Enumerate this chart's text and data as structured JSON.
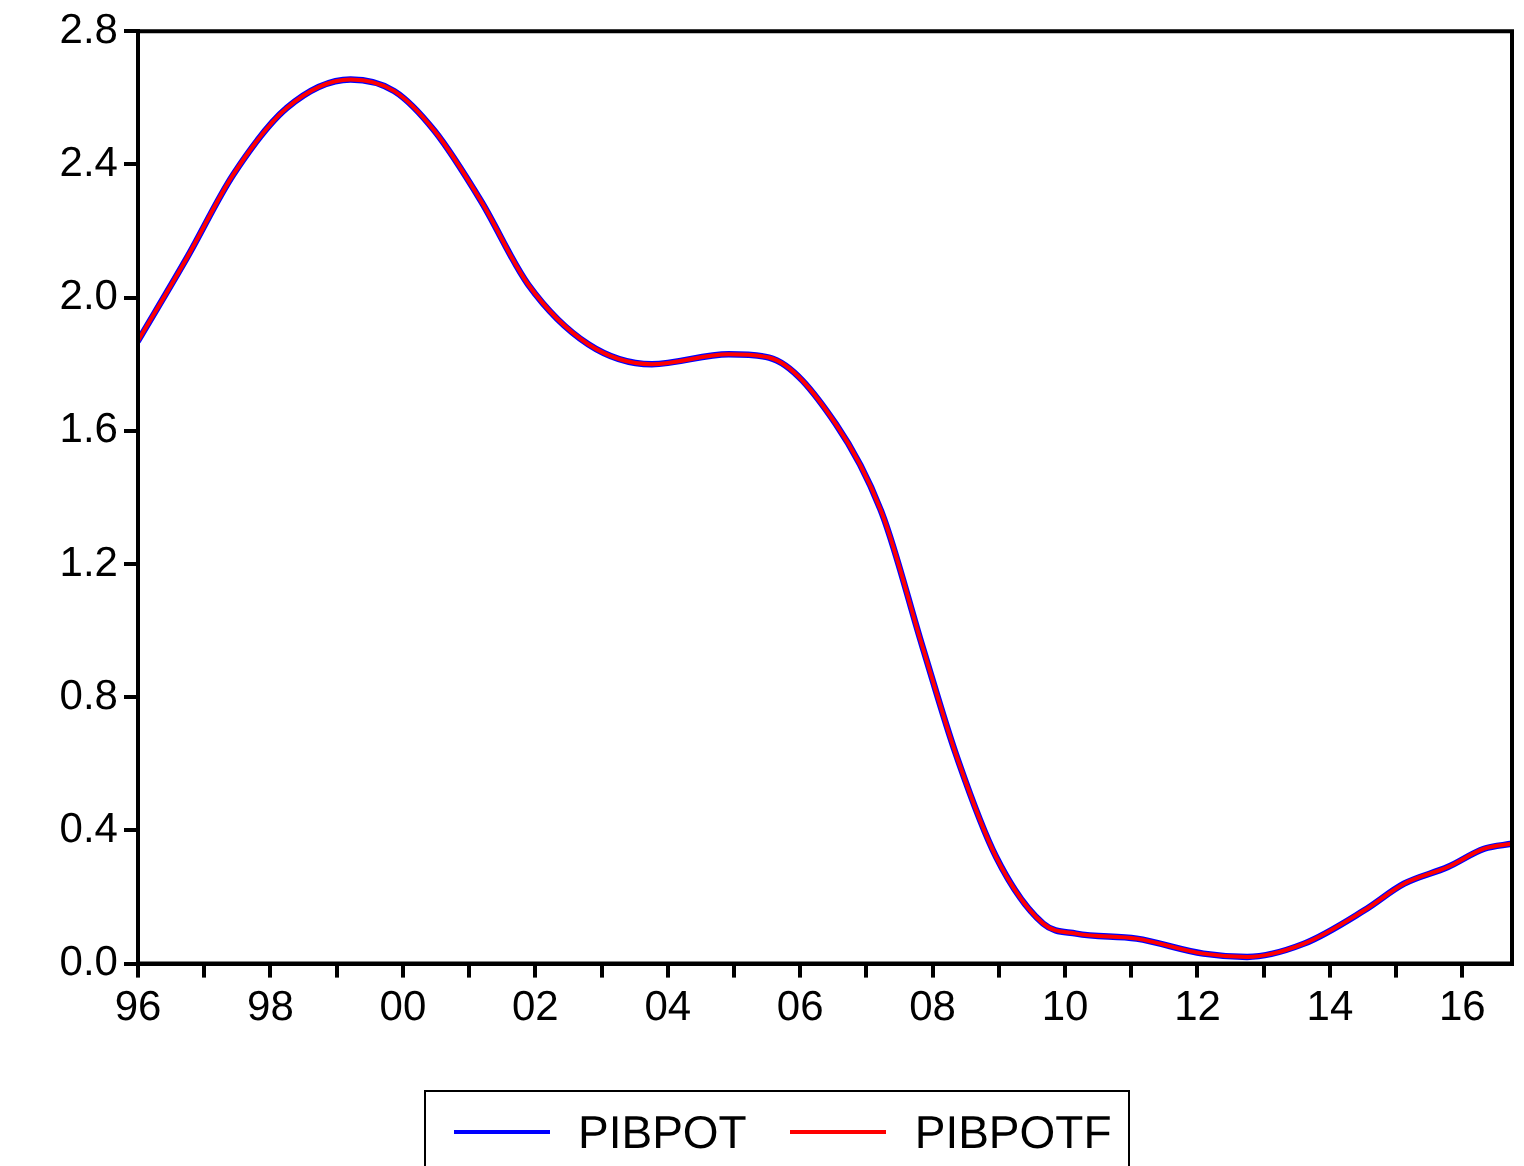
{
  "chart_data": {
    "type": "line",
    "x": [
      1996,
      1996.74,
      1997.44,
      1998.25,
      1999.21,
      1999.87,
      2000.48,
      2001.18,
      2001.89,
      2002.8,
      2003.76,
      2004.92,
      2005.53,
      2006.54,
      2007.24,
      2007.85,
      2008.35,
      2008.96,
      2009.67,
      2010.17,
      2011.08,
      2012.09,
      2012.75,
      2013.61,
      2014.52,
      2015.12,
      2015.78,
      2016.33,
      2016.75
    ],
    "series": [
      {
        "name": "PIBPOT",
        "color": "#0000ff",
        "values": [
          1.87,
          2.12,
          2.37,
          2.57,
          2.655,
          2.62,
          2.5,
          2.29,
          2.04,
          1.86,
          1.8,
          1.83,
          1.82,
          1.62,
          1.35,
          0.95,
          0.63,
          0.32,
          0.12,
          0.09,
          0.075,
          0.03,
          0.02,
          0.06,
          0.16,
          0.24,
          0.29,
          0.345,
          0.36
        ]
      },
      {
        "name": "PIBPOTF",
        "color": "#ff0000",
        "values": [
          1.87,
          2.12,
          2.37,
          2.57,
          2.655,
          2.62,
          2.5,
          2.29,
          2.04,
          1.86,
          1.8,
          1.83,
          1.82,
          1.62,
          1.35,
          0.95,
          0.63,
          0.32,
          0.12,
          0.09,
          0.075,
          0.03,
          0.02,
          0.06,
          0.16,
          0.24,
          0.29,
          0.345,
          0.36
        ]
      }
    ],
    "xlim": [
      1996,
      2016.75
    ],
    "xticks": [
      {
        "value": 1996,
        "label": "96"
      },
      {
        "value": 1997,
        "label": null
      },
      {
        "value": 1998,
        "label": "98"
      },
      {
        "value": 1999,
        "label": null
      },
      {
        "value": 2000,
        "label": "00"
      },
      {
        "value": 2001,
        "label": null
      },
      {
        "value": 2002,
        "label": "02"
      },
      {
        "value": 2003,
        "label": null
      },
      {
        "value": 2004,
        "label": "04"
      },
      {
        "value": 2005,
        "label": null
      },
      {
        "value": 2006,
        "label": "06"
      },
      {
        "value": 2007,
        "label": null
      },
      {
        "value": 2008,
        "label": "08"
      },
      {
        "value": 2009,
        "label": null
      },
      {
        "value": 2010,
        "label": "10"
      },
      {
        "value": 2011,
        "label": null
      },
      {
        "value": 2012,
        "label": "12"
      },
      {
        "value": 2013,
        "label": null
      },
      {
        "value": 2014,
        "label": "14"
      },
      {
        "value": 2015,
        "label": null
      },
      {
        "value": 2016,
        "label": "16"
      }
    ],
    "ylim": [
      0,
      2.8
    ],
    "yticks": [
      {
        "value": 0,
        "label": "0.0"
      },
      {
        "value": 0.4,
        "label": "0.4"
      },
      {
        "value": 0.8,
        "label": "0.8"
      },
      {
        "value": 1.2,
        "label": "1.2"
      },
      {
        "value": 1.6,
        "label": "1.6"
      },
      {
        "value": 2.0,
        "label": "2.0"
      },
      {
        "value": 2.4,
        "label": "2.4"
      },
      {
        "value": 2.8,
        "label": "2.8"
      }
    ],
    "grid": false,
    "legend": "bottom",
    "marker": "none",
    "line_style": "solid"
  }
}
